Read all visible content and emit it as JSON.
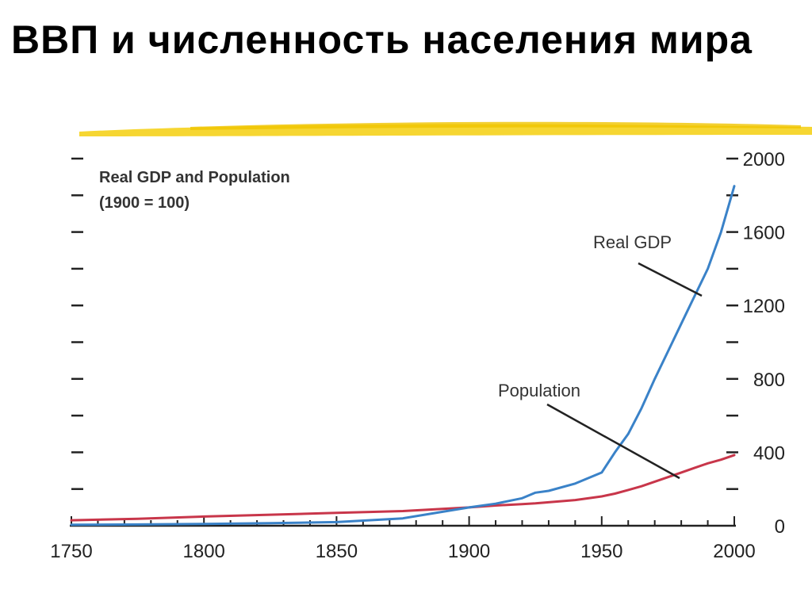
{
  "slide": {
    "title": "ВВП и численность населения мира"
  },
  "colors": {
    "underline": "#f5d21c",
    "gdp": "#3a82c8",
    "population": "#c8364a",
    "axis": "#222222",
    "callout": "#222222"
  },
  "chart_data": {
    "type": "line",
    "title": "Real GDP and Population",
    "subtitle": "(1900 = 100)",
    "x": [
      1750,
      1775,
      1800,
      1825,
      1850,
      1875,
      1900,
      1910,
      1920,
      1925,
      1930,
      1940,
      1950,
      1955,
      1960,
      1965,
      1970,
      1975,
      1980,
      1985,
      1990,
      1995,
      2000
    ],
    "series": [
      {
        "name": "Real GDP",
        "color": "#3a82c8",
        "values": [
          5,
          7,
          10,
          14,
          20,
          40,
          100,
          120,
          150,
          180,
          190,
          230,
          290,
          400,
          500,
          640,
          800,
          950,
          1100,
          1250,
          1400,
          1600,
          1850
        ]
      },
      {
        "name": "Population",
        "color": "#c8364a",
        "values": [
          30,
          38,
          50,
          60,
          70,
          80,
          100,
          110,
          118,
          122,
          128,
          140,
          160,
          175,
          195,
          215,
          240,
          265,
          290,
          315,
          340,
          360,
          385
        ]
      }
    ],
    "xlim": [
      1750,
      2000
    ],
    "ylim": [
      0,
      2000
    ],
    "x_ticks": [
      1750,
      1800,
      1850,
      1900,
      1950,
      2000
    ],
    "y_ticks_labeled": [
      0,
      400,
      800,
      1200,
      1600,
      2000
    ],
    "xlabel": "",
    "ylabel": "",
    "grid": false,
    "legend": "inline-callouts"
  }
}
